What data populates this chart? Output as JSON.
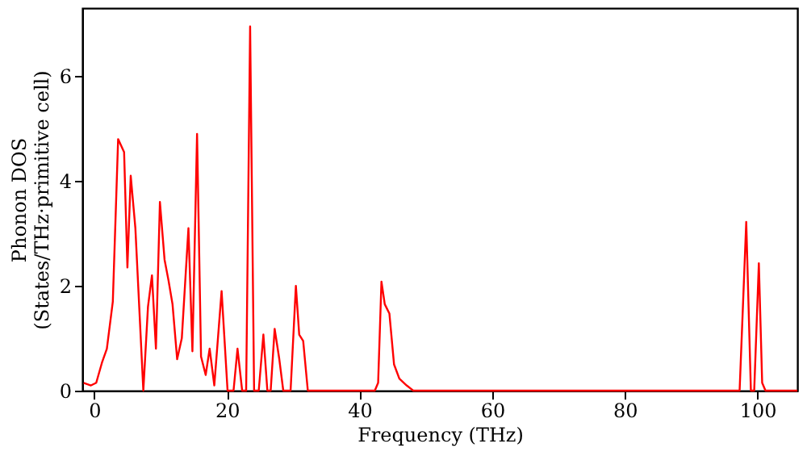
{
  "chart_data": {
    "type": "line",
    "xlabel": "Frequency (THz)",
    "ylabel": "Phonon DOS\n(States/THz·primitive cell)",
    "x": [
      -1.6,
      -0.5,
      0.3,
      1.2,
      1.9,
      2.8,
      3.6,
      4.5,
      5.0,
      5.5,
      6.2,
      7.4,
      8.1,
      8.7,
      9.3,
      9.9,
      10.6,
      11.2,
      11.8,
      12.5,
      13.2,
      14.2,
      14.8,
      15.5,
      16.1,
      16.8,
      17.4,
      18.1,
      19.2,
      20.1,
      21.0,
      21.6,
      22.3,
      22.9,
      23.5,
      24.1,
      24.8,
      25.5,
      26.1,
      26.6,
      27.2,
      27.9,
      28.5,
      29.6,
      30.4,
      30.9,
      31.5,
      32.2,
      42.3,
      42.8,
      43.3,
      43.8,
      44.5,
      45.2,
      46.0,
      47.1,
      48.1,
      97.3,
      98.3,
      99.0,
      99.5,
      100.2,
      100.7,
      101.2,
      106
    ],
    "series": [
      {
        "color": "#ff0000",
        "values": [
          0.15,
          0.1,
          0.15,
          0.55,
          0.8,
          1.7,
          4.8,
          4.55,
          2.35,
          4.1,
          3.1,
          0,
          1.6,
          2.2,
          0.8,
          3.6,
          2.5,
          2.1,
          1.65,
          0.6,
          1.0,
          3.1,
          0.75,
          4.9,
          0.65,
          0.3,
          0.8,
          0.1,
          1.9,
          0,
          0,
          0.8,
          0,
          0,
          6.95,
          0,
          0,
          1.07,
          0,
          0,
          1.18,
          0.6,
          0,
          0,
          2.0,
          1.07,
          0.95,
          0,
          0,
          0.15,
          2.08,
          1.65,
          1.47,
          0.5,
          0.23,
          0.1,
          0,
          0,
          3.22,
          0,
          0,
          2.43,
          0.15,
          0,
          0
        ]
      }
    ],
    "xlim": [
      -1.8,
      106
    ],
    "ylim": [
      0,
      7.3
    ],
    "xticks": [
      0,
      20,
      40,
      60,
      80,
      100
    ],
    "yticks": [
      0,
      2,
      4,
      6
    ],
    "grid": false,
    "legend": false
  }
}
